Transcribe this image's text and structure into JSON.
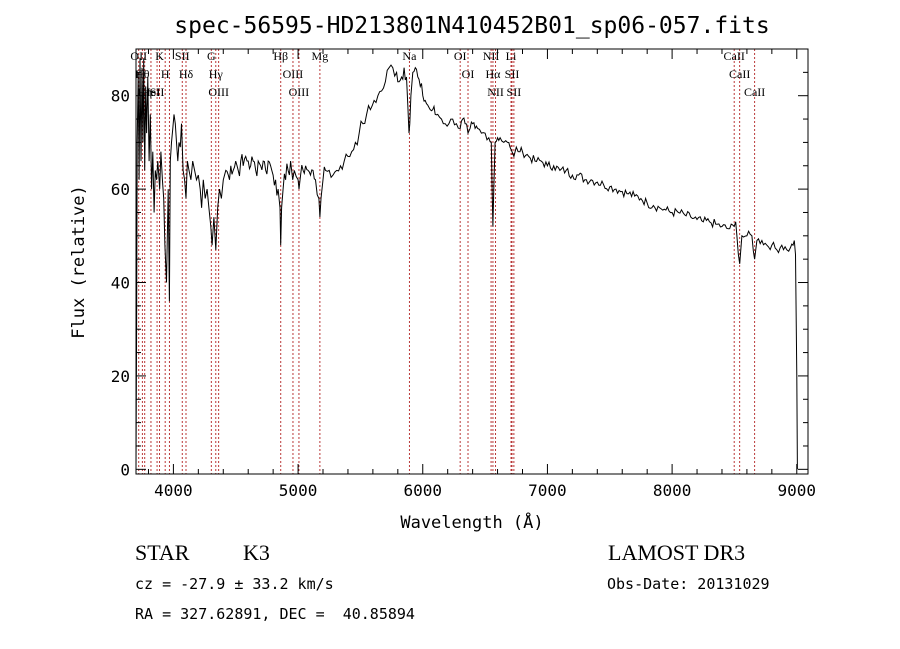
{
  "chart_data": {
    "type": "line",
    "title": "spec-56595-HD213801N410452B01_sp06-057.fits",
    "xlabel": "Wavelength (Å)",
    "ylabel": "Flux (relative)",
    "xlim": [
      3700,
      9090
    ],
    "ylim": [
      -1,
      90
    ],
    "xticks": [
      4000,
      5000,
      6000,
      7000,
      8000,
      9000
    ],
    "yticks": [
      0,
      20,
      40,
      60,
      80
    ],
    "grid": false,
    "series": [
      {
        "points": [
          [
            3700,
            0
          ],
          [
            3705,
            30
          ],
          [
            3710,
            70
          ],
          [
            3718,
            85
          ],
          [
            3725,
            62
          ],
          [
            3732,
            88
          ],
          [
            3740,
            66
          ],
          [
            3748,
            86
          ],
          [
            3755,
            70
          ],
          [
            3762,
            88
          ],
          [
            3770,
            64
          ],
          [
            3778,
            82
          ],
          [
            3785,
            72
          ],
          [
            3795,
            84
          ],
          [
            3805,
            66
          ],
          [
            3815,
            76
          ],
          [
            3825,
            60
          ],
          [
            3835,
            68
          ],
          [
            3845,
            55
          ],
          [
            3855,
            64
          ],
          [
            3865,
            62
          ],
          [
            3875,
            66
          ],
          [
            3890,
            60
          ],
          [
            3900,
            68
          ],
          [
            3912,
            62
          ],
          [
            3922,
            58
          ],
          [
            3932,
            48
          ],
          [
            3945,
            40
          ],
          [
            3958,
            60
          ],
          [
            3968,
            36
          ],
          [
            3975,
            66
          ],
          [
            3985,
            70
          ],
          [
            3995,
            73
          ],
          [
            4005,
            76
          ],
          [
            4015,
            74
          ],
          [
            4025,
            70
          ],
          [
            4035,
            66
          ],
          [
            4045,
            70
          ],
          [
            4055,
            69
          ],
          [
            4065,
            74
          ],
          [
            4078,
            64
          ],
          [
            4090,
            62
          ],
          [
            4101,
            58
          ],
          [
            4112,
            66
          ],
          [
            4125,
            64
          ],
          [
            4140,
            62
          ],
          [
            4155,
            66
          ],
          [
            4170,
            64
          ],
          [
            4185,
            62
          ],
          [
            4200,
            63
          ],
          [
            4215,
            60
          ],
          [
            4226,
            56
          ],
          [
            4240,
            62
          ],
          [
            4255,
            58
          ],
          [
            4270,
            60
          ],
          [
            4285,
            56
          ],
          [
            4300,
            52
          ],
          [
            4310,
            48
          ],
          [
            4325,
            54
          ],
          [
            4340,
            47
          ],
          [
            4355,
            56
          ],
          [
            4370,
            60
          ],
          [
            4385,
            58
          ],
          [
            4400,
            62
          ],
          [
            4420,
            64
          ],
          [
            4440,
            63
          ],
          [
            4460,
            65
          ],
          [
            4480,
            64
          ],
          [
            4500,
            66
          ],
          [
            4520,
            64
          ],
          [
            4540,
            66
          ],
          [
            4560,
            65
          ],
          [
            4580,
            67
          ],
          [
            4600,
            66
          ],
          [
            4620,
            65
          ],
          [
            4640,
            66
          ],
          [
            4660,
            64
          ],
          [
            4680,
            66
          ],
          [
            4700,
            65
          ],
          [
            4720,
            66
          ],
          [
            4740,
            64
          ],
          [
            4760,
            66
          ],
          [
            4780,
            65
          ],
          [
            4800,
            63
          ],
          [
            4820,
            62
          ],
          [
            4840,
            60
          ],
          [
            4855,
            56
          ],
          [
            4861,
            48
          ],
          [
            4868,
            56
          ],
          [
            4880,
            60
          ],
          [
            4900,
            62
          ],
          [
            4920,
            64
          ],
          [
            4940,
            66
          ],
          [
            4957,
            62
          ],
          [
            4970,
            64
          ],
          [
            5000,
            62
          ],
          [
            5007,
            60
          ],
          [
            5020,
            63
          ],
          [
            5040,
            64
          ],
          [
            5060,
            65
          ],
          [
            5080,
            64
          ],
          [
            5100,
            63
          ],
          [
            5120,
            64
          ],
          [
            5140,
            62
          ],
          [
            5167,
            58
          ],
          [
            5175,
            54
          ],
          [
            5184,
            58
          ],
          [
            5200,
            62
          ],
          [
            5220,
            64
          ],
          [
            5250,
            64
          ],
          [
            5280,
            63
          ],
          [
            5310,
            64
          ],
          [
            5340,
            65
          ],
          [
            5370,
            66
          ],
          [
            5400,
            67
          ],
          [
            5430,
            68
          ],
          [
            5460,
            70
          ],
          [
            5490,
            72
          ],
          [
            5520,
            74
          ],
          [
            5550,
            76
          ],
          [
            5580,
            77
          ],
          [
            5610,
            79
          ],
          [
            5640,
            80
          ],
          [
            5670,
            81
          ],
          [
            5700,
            83
          ],
          [
            5730,
            86
          ],
          [
            5760,
            86
          ],
          [
            5790,
            85
          ],
          [
            5810,
            83
          ],
          [
            5830,
            84
          ],
          [
            5850,
            86
          ],
          [
            5870,
            84
          ],
          [
            5880,
            78
          ],
          [
            5890,
            72
          ],
          [
            5896,
            74
          ],
          [
            5905,
            80
          ],
          [
            5920,
            85
          ],
          [
            5940,
            86
          ],
          [
            5960,
            84
          ],
          [
            5980,
            82
          ],
          [
            6000,
            80
          ],
          [
            6020,
            79
          ],
          [
            6040,
            78
          ],
          [
            6060,
            77
          ],
          [
            6080,
            77
          ],
          [
            6100,
            76
          ],
          [
            6120,
            76
          ],
          [
            6150,
            75
          ],
          [
            6180,
            74
          ],
          [
            6210,
            74
          ],
          [
            6240,
            75
          ],
          [
            6270,
            74
          ],
          [
            6300,
            73
          ],
          [
            6320,
            75
          ],
          [
            6340,
            74
          ],
          [
            6363,
            72
          ],
          [
            6380,
            73
          ],
          [
            6400,
            74
          ],
          [
            6420,
            73
          ],
          [
            6440,
            73
          ],
          [
            6470,
            72
          ],
          [
            6500,
            72
          ],
          [
            6530,
            71
          ],
          [
            6550,
            70
          ],
          [
            6556,
            60
          ],
          [
            6563,
            52
          ],
          [
            6570,
            60
          ],
          [
            6580,
            70
          ],
          [
            6600,
            71
          ],
          [
            6620,
            71
          ],
          [
            6650,
            70
          ],
          [
            6680,
            70
          ],
          [
            6700,
            69
          ],
          [
            6716,
            68
          ],
          [
            6731,
            67
          ],
          [
            6750,
            69
          ],
          [
            6780,
            68
          ],
          [
            6800,
            68
          ],
          [
            6850,
            67
          ],
          [
            6900,
            66
          ],
          [
            6950,
            66
          ],
          [
            7000,
            65
          ],
          [
            7050,
            65
          ],
          [
            7100,
            64
          ],
          [
            7150,
            64
          ],
          [
            7200,
            63
          ],
          [
            7250,
            63
          ],
          [
            7300,
            62
          ],
          [
            7350,
            62
          ],
          [
            7400,
            61.5
          ],
          [
            7450,
            61
          ],
          [
            7500,
            60.5
          ],
          [
            7550,
            60
          ],
          [
            7600,
            59.5
          ],
          [
            7650,
            59
          ],
          [
            7700,
            58.5
          ],
          [
            7750,
            58
          ],
          [
            7800,
            57
          ],
          [
            7850,
            56.5
          ],
          [
            7900,
            56
          ],
          [
            7950,
            55.5
          ],
          [
            8000,
            55
          ],
          [
            8050,
            55
          ],
          [
            8100,
            54.5
          ],
          [
            8150,
            54
          ],
          [
            8200,
            53.5
          ],
          [
            8250,
            53
          ],
          [
            8300,
            53
          ],
          [
            8350,
            52.5
          ],
          [
            8400,
            52
          ],
          [
            8450,
            51.5
          ],
          [
            8498,
            52
          ],
          [
            8510,
            53
          ],
          [
            8520,
            50
          ],
          [
            8542,
            44
          ],
          [
            8560,
            50
          ],
          [
            8600,
            50
          ],
          [
            8640,
            50
          ],
          [
            8662,
            45
          ],
          [
            8680,
            49
          ],
          [
            8720,
            49
          ],
          [
            8760,
            48
          ],
          [
            8800,
            48
          ],
          [
            8840,
            47
          ],
          [
            8880,
            48
          ],
          [
            8920,
            47
          ],
          [
            8950,
            47.5
          ],
          [
            8970,
            48
          ],
          [
            8980,
            49
          ],
          [
            8990,
            46
          ],
          [
            9000,
            20
          ],
          [
            9005,
            0
          ]
        ]
      }
    ],
    "line_markers": [
      {
        "wavelength": 3722,
        "labels": [
          "OII"
        ]
      },
      {
        "wavelength": 3751,
        "labels": [
          "Hθ"
        ]
      },
      {
        "wavelength": 3770,
        "labels": [
          "Hη"
        ]
      },
      {
        "wavelength": 3820,
        "labels": [
          "HeI"
        ]
      },
      {
        "wavelength": 3869,
        "labels": [
          "SII"
        ]
      },
      {
        "wavelength": 3889,
        "labels": [
          "K"
        ]
      },
      {
        "wavelength": 3934,
        "labels": [
          "H"
        ]
      },
      {
        "wavelength": 3968,
        "labels": []
      },
      {
        "wavelength": 4071,
        "labels": [
          "SII"
        ]
      },
      {
        "wavelength": 4101,
        "labels": [
          "Hδ"
        ]
      },
      {
        "wavelength": 4304,
        "labels": [
          "G"
        ]
      },
      {
        "wavelength": 4340,
        "labels": [
          "Hγ"
        ]
      },
      {
        "wavelength": 4363,
        "labels": [
          "OIII"
        ]
      },
      {
        "wavelength": 4861,
        "labels": [
          "Hβ"
        ]
      },
      {
        "wavelength": 4959,
        "labels": [
          "OIII"
        ]
      },
      {
        "wavelength": 5007,
        "labels": [
          "OIII"
        ]
      },
      {
        "wavelength": 5175,
        "labels": [
          "Mg"
        ]
      },
      {
        "wavelength": 5893,
        "labels": [
          "Na"
        ]
      },
      {
        "wavelength": 6300,
        "labels": [
          "OI"
        ]
      },
      {
        "wavelength": 6363,
        "labels": [
          "OI"
        ]
      },
      {
        "wavelength": 6548,
        "labels": [
          "NII"
        ]
      },
      {
        "wavelength": 6563,
        "labels": [
          "Hα"
        ]
      },
      {
        "wavelength": 6584,
        "labels": [
          "NII"
        ]
      },
      {
        "wavelength": 6708,
        "labels": [
          "Li"
        ]
      },
      {
        "wavelength": 6716,
        "labels": [
          "SII"
        ]
      },
      {
        "wavelength": 6731,
        "labels": [
          "SII"
        ]
      },
      {
        "wavelength": 8498,
        "labels": [
          "CaII"
        ]
      },
      {
        "wavelength": 8542,
        "labels": [
          "CaII"
        ]
      },
      {
        "wavelength": 8662,
        "labels": [
          "CaII"
        ]
      }
    ],
    "marker_color": "#b22222",
    "line_color": "#000000"
  },
  "info": {
    "object_class": "STAR",
    "subclass": "K3",
    "survey": "LAMOST DR3",
    "redshift": "cz = -27.9 ± 33.2 km/s",
    "obs_date": "Obs-Date: 20131029",
    "coords": "RA = 327.62891, DEC =  40.85894"
  }
}
